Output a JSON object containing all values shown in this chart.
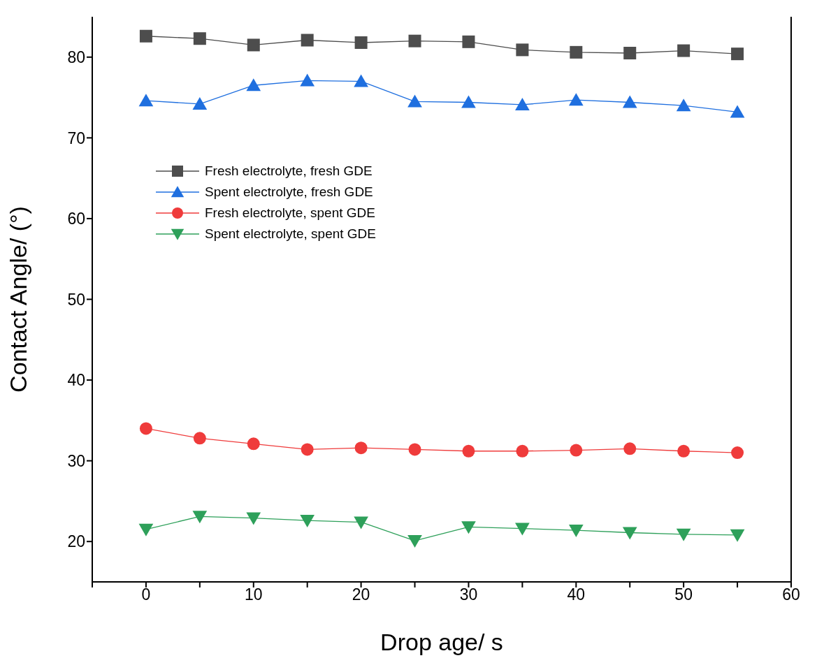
{
  "chart_data": {
    "type": "line",
    "xlabel": "Drop age/ s",
    "ylabel": "Contact Angle/ (°)",
    "x": [
      0,
      5,
      10,
      15,
      20,
      25,
      30,
      35,
      40,
      45,
      50,
      55
    ],
    "xlim": [
      -5,
      60
    ],
    "xticks": [
      {
        "value": -5,
        "label": null
      },
      0,
      {
        "value": 5,
        "label": null
      },
      10,
      {
        "value": 15,
        "label": null
      },
      20,
      {
        "value": 25,
        "label": null
      },
      30,
      {
        "value": 35,
        "label": null
      },
      40,
      {
        "value": 45,
        "label": null
      },
      50,
      {
        "value": 55,
        "label": null
      },
      60
    ],
    "ylim": [
      15,
      85
    ],
    "yticks": [
      20,
      30,
      40,
      50,
      60,
      70,
      80
    ],
    "legend": "top left",
    "line_style": "solid",
    "series": [
      {
        "name": "Fresh electrolyte, fresh GDE",
        "color": "#4d4d4d",
        "marker": "square",
        "values": [
          82.6,
          82.3,
          81.5,
          82.1,
          81.8,
          82.0,
          81.9,
          80.9,
          80.6,
          80.5,
          80.8,
          80.4
        ]
      },
      {
        "name": "Spent electrolyte, fresh GDE",
        "color": "#1f6fdf",
        "marker": "triangle",
        "values": [
          74.6,
          74.2,
          76.5,
          77.1,
          77.0,
          74.5,
          74.4,
          74.1,
          74.7,
          74.4,
          74.0,
          73.2
        ]
      },
      {
        "name": "Fresh electrolyte, spent GDE",
        "color": "#ef3b3b",
        "marker": "circle",
        "values": [
          34.0,
          32.8,
          32.1,
          31.4,
          31.6,
          31.4,
          31.2,
          31.2,
          31.3,
          31.5,
          31.2,
          31.0
        ]
      },
      {
        "name": "Spent electrolyte, spent GDE",
        "color": "#2ea05a",
        "marker": "triangle-down",
        "values": [
          21.5,
          23.1,
          22.9,
          22.6,
          22.4,
          20.1,
          21.8,
          21.6,
          21.4,
          21.1,
          20.9,
          20.8
        ]
      }
    ]
  }
}
